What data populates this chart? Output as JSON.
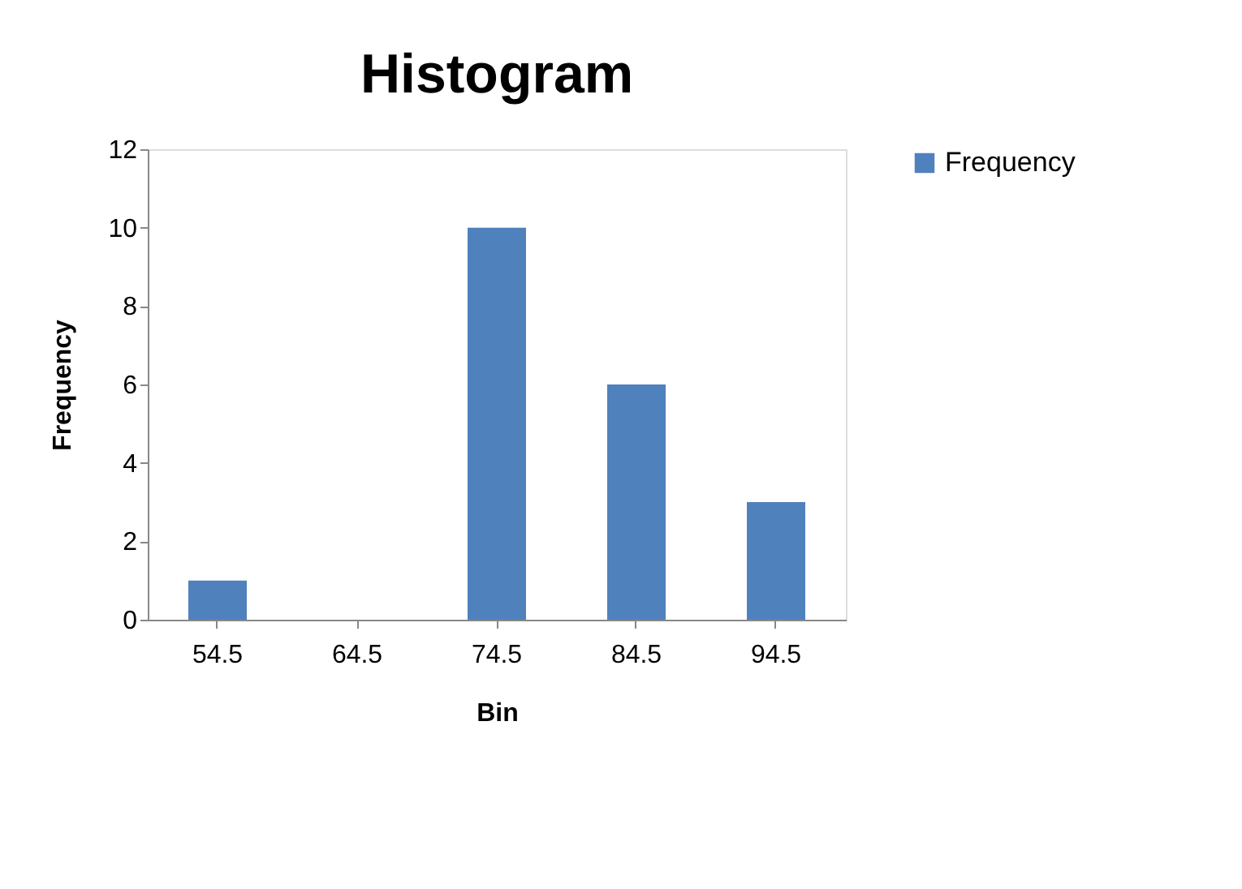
{
  "chart_data": {
    "type": "bar",
    "title": "Histogram",
    "xlabel": "Bin",
    "ylabel": "Frequency",
    "categories": [
      "54.5",
      "64.5",
      "74.5",
      "84.5",
      "94.5"
    ],
    "series": [
      {
        "name": "Frequency",
        "color": "#4f81bd",
        "values": [
          1,
          0,
          10,
          6,
          3
        ]
      }
    ],
    "ylim": [
      0,
      12
    ],
    "yticks": [
      0,
      2,
      4,
      6,
      8,
      10,
      12
    ],
    "grid": false,
    "legend": "right"
  }
}
